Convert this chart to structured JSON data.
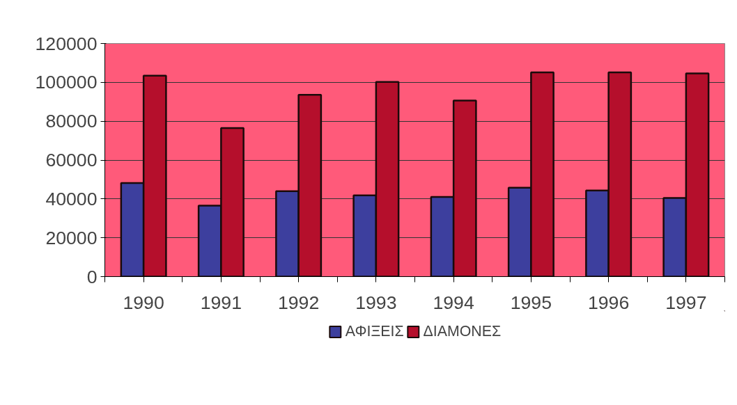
{
  "chart_data": {
    "type": "bar",
    "categories": [
      "1990",
      "1991",
      "1992",
      "1993",
      "1994",
      "1995",
      "1996",
      "1997"
    ],
    "series": [
      {
        "name": "ΑΦΙΞΕΙΣ",
        "color": "#3d3f9e",
        "values": [
          48200,
          36500,
          44000,
          41800,
          41000,
          45800,
          44300,
          40500
        ]
      },
      {
        "name": "ΔΙΑΜΟΝΕΣ",
        "color": "#b50f2c",
        "values": [
          103400,
          76500,
          93600,
          100200,
          90600,
          105100,
          105100,
          104600
        ]
      }
    ],
    "ylim": [
      0,
      120000
    ],
    "yticks": [
      0,
      20000,
      40000,
      60000,
      80000,
      100000,
      120000
    ],
    "grid": "y",
    "legend": "bottom"
  }
}
